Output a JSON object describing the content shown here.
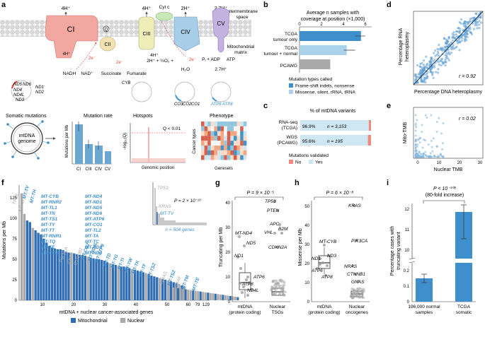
{
  "panels": {
    "a": {
      "letter": "a",
      "protons_ci": "4H⁺",
      "protons_ciii": "4H⁺",
      "protons_civ": "2H⁺",
      "protons_cv": "2.7H⁺",
      "cyt_c": "Cyt c",
      "q": "Q",
      "intermembrane": "Intermembrane",
      "intermembrane2": "space",
      "matrix": "Mitochondrial",
      "matrix2": "matrix",
      "ci": "CI",
      "cii": "CII",
      "ciii": "CIII",
      "civ": "CIV",
      "cv": "CV",
      "h_in_ci": "4H⁺",
      "e_ci": "2e⁻",
      "e_cii": "2e⁻",
      "e_civ": "2e⁻",
      "nadh": "NADH",
      "nad": "NAD⁺",
      "succinate": "Succinate",
      "fumarate": "Fumarate",
      "h_civ_in": "2H⁺ + ½O₂ +",
      "h2o": "H₂O",
      "h_cv_in1": "4H⁺",
      "pi_adp": "Pᵢ + ADP",
      "atp": "ATP",
      "h_cv_in2": "2.7H⁺",
      "genes_ci": [
        "ND5",
        "ND6",
        "ND1",
        "ND2",
        "ND4",
        "ND4L",
        "ND3"
      ],
      "gene_ciii": "CYB",
      "genes_civ": [
        "CO3",
        "CO2",
        "CO1"
      ],
      "genes_cv": [
        "ATP6",
        "ATP8"
      ],
      "somatic": "Somatic mutations",
      "mtdna": "mtDNA",
      "genome": "genome",
      "mut_rate": "Mutation rate",
      "mut_ylab": "Mutations per Mb",
      "mut_xticks": [
        "CI",
        "CIII",
        "CIV",
        "CV"
      ],
      "hotspots": "Hotspots",
      "hot_ylab": "−log₁₀(Q)",
      "hot_q": "Q < 0.01",
      "hot_xlab": "Genomic position",
      "phenotype": "Phenotype",
      "phen_ylab": "Cancer types",
      "phen_xlab": "Genesets"
    },
    "b": {
      "letter": "b",
      "title1": "Average n samples with",
      "title2": "coverage at position (×1,000)",
      "cats": [
        "TCGA tumour only",
        "TCGA tumour + normal",
        "PCAWG"
      ],
      "cat_lines": [
        [
          "TCGA",
          "tumour only"
        ],
        [
          "TCGA",
          "tumour + normal"
        ],
        [
          "PCAWG"
        ]
      ],
      "ticks": [
        "0",
        "2",
        "4",
        "6"
      ],
      "legend_title": "Mutation types called",
      "legend": [
        "Frame-shift indels, nonsense",
        "Missense, silent, rRNA, tRNA"
      ]
    },
    "c": {
      "letter": "c",
      "title": "% of mtDNA variants",
      "rows": [
        {
          "l1": "RNA-seq",
          "l2": "(TCGA)",
          "pct": "96.9%",
          "n": "n = 3,153"
        },
        {
          "l1": "WGS",
          "l2": "(PCAWG)",
          "pct": "95.6%",
          "n": "n = 195"
        }
      ],
      "legend_title": "Mutations validated",
      "legend": [
        "No",
        "Yes"
      ]
    },
    "d": {
      "letter": "d",
      "ylab1": "Percentage RNA",
      "ylab2": "heteroplasmy",
      "xlab": "Percentage DNA heteroplasmy",
      "r": "r = 0.92"
    },
    "e": {
      "letter": "e",
      "ylab": "Mito-TMB",
      "xlab": "Nuclear TMB",
      "r": "r = 0.02",
      "xticks": [
        "0",
        "10",
        "20",
        "30"
      ]
    },
    "f": {
      "letter": "f",
      "ylab": "Mutations per Mb",
      "xlab": "mtDNA + nuclear cancer-associated genes",
      "yticks": [
        "0",
        "25",
        "50",
        "75",
        "100",
        "125"
      ],
      "xticks": [
        "10",
        "20",
        "30",
        "40",
        "50",
        "60",
        "79",
        "129"
      ],
      "mito_block1": [
        "MT-CYB",
        "MT-RNR2",
        "MT-TL1",
        "MT-TN",
        "MT-TS1",
        "MT-TY",
        "MT-TT",
        "MT-RNR1",
        "MT-TQ",
        "MT-TE",
        "MT-CO3"
      ],
      "mito_block2": [
        "MT-ND4",
        "MT-ND1",
        "MT-ND5",
        "MT-ND6",
        "MT-ATP6",
        "MT-CO1",
        "MT-TL2",
        "MT-TA",
        "MT-TC",
        "MT-ND2",
        "MT-ND3"
      ],
      "top_labels": [
        "TP53",
        "KRAS",
        "MT-TV",
        "MT-TH"
      ],
      "other_labels": [
        "PIK3CA",
        "IDH1",
        "CTNNB1",
        "NRAS",
        "MT-TD",
        "MT-TG",
        "MT-TI",
        "MT-TS2",
        "MT-TK",
        "MT-TF",
        "MT-TW",
        "MT-ATP8",
        "MT-ND4L",
        "MT-CO2",
        "BRAF",
        "MT-TM",
        "MT-TE",
        "MT-TS2"
      ],
      "inset_labels": [
        "TP53",
        "KRAS",
        "MT-TV"
      ],
      "inset_p": "P = 2 × 10⁻²²",
      "inset_n": "n = 504 genes",
      "legend": [
        "Mitochondrial",
        "Nuclear"
      ]
    },
    "g": {
      "letter": "g",
      "ylab": "Truncating per Mb",
      "p": "P = 9 × 10⁻⁵",
      "yticks": [
        "0",
        "10",
        "20",
        "30",
        "40"
      ],
      "xcats": [
        [
          "mtDNA",
          "(protein coding)"
        ],
        [
          "Nuclear",
          "TSGs"
        ]
      ],
      "labels": [
        "TP53",
        "PTEN",
        "APC",
        "VHL",
        "B2M",
        "CDKN2A",
        "MT-ND4",
        "ND5",
        "ND1",
        "ATP6",
        "ATP8",
        "ND4L"
      ]
    },
    "h": {
      "letter": "h",
      "ylab": "Missense per Mb",
      "p": "P = 6 × 10⁻⁸",
      "yticks": [
        "0",
        "10",
        "20",
        "30",
        "40",
        "50"
      ],
      "xcats": [
        [
          "mtDNA",
          "(protein coding)"
        ],
        [
          "Nuclear",
          "oncogenes"
        ]
      ],
      "labels": [
        "KRAS",
        "PIK3CA",
        "NRAS",
        "CTNNB1",
        "GNAS",
        "MT-CYB",
        "ND1",
        "ND3",
        "ATP6",
        "ATP8"
      ]
    },
    "i": {
      "letter": "i",
      "ylab1": "Percentage cases with",
      "ylab2": "truncating variant",
      "p": "P < 10⁻³⁰⁸",
      "fold": "(80-fold increase)",
      "yticks": [
        "0",
        "0.1",
        "0.2",
        "10",
        "11",
        "12"
      ],
      "xcats": [
        [
          "196,000 normal",
          "samples"
        ],
        [
          "TCGA",
          "somatic"
        ]
      ]
    }
  },
  "chart_data": [
    {
      "panel": "b",
      "type": "bar",
      "categories": [
        "TCGA tumour only",
        "TCGA tumour + normal",
        "PCAWG"
      ],
      "values": [
        5.6,
        4.3,
        2.8
      ],
      "xlim": [
        0,
        6.5
      ],
      "legend": [
        "Frame-shift indels, nonsense",
        "Missense, silent, rRNA, tRNA"
      ],
      "colors": [
        "#3f8fcc",
        "#aad2ea",
        "#a9a9a9"
      ]
    },
    {
      "panel": "c",
      "type": "bar",
      "categories": [
        "RNA-seq (TCGA)",
        "WGS (PCAWG)"
      ],
      "series": [
        {
          "name": "Yes",
          "values": [
            96.9,
            95.6
          ]
        },
        {
          "name": "No",
          "values": [
            3.1,
            4.4
          ]
        }
      ]
    },
    {
      "panel": "f",
      "type": "bar",
      "ylim": [
        0,
        140
      ],
      "values": [
        130,
        105,
        97,
        95,
        88,
        85,
        82,
        80,
        75,
        70,
        66,
        64,
        63,
        62,
        62,
        61,
        59,
        58,
        58,
        57,
        56,
        55,
        55,
        54,
        53,
        52,
        51,
        50,
        50,
        49,
        48,
        46,
        45,
        44,
        43,
        42,
        41,
        41,
        40,
        39,
        38,
        37,
        36,
        35,
        34,
        33,
        32,
        30,
        29,
        28,
        27,
        26,
        25,
        24,
        23,
        22,
        21,
        20,
        18,
        17
      ],
      "kinds": [
        "n",
        "n",
        "m",
        "m",
        "n",
        "m",
        "m",
        "m",
        "m",
        "m",
        "m",
        "m",
        "m",
        "m",
        "m",
        "m",
        "m",
        "m",
        "n",
        "m",
        "m",
        "m",
        "m",
        "m",
        "n",
        "m",
        "m",
        "m",
        "m",
        "m",
        "m",
        "m",
        "n",
        "m",
        "m",
        "n",
        "m",
        "m",
        "m",
        "m",
        "n",
        "m",
        "m",
        "m",
        "m",
        "n",
        "m",
        "m",
        "m",
        "m",
        "n",
        "m",
        "m",
        "n",
        "m",
        "m",
        "m",
        "n",
        "m",
        "n"
      ]
    },
    {
      "panel": "i",
      "type": "bar",
      "categories": [
        "196,000 normal samples",
        "TCGA somatic"
      ],
      "values": [
        0.15,
        11.8
      ]
    }
  ]
}
